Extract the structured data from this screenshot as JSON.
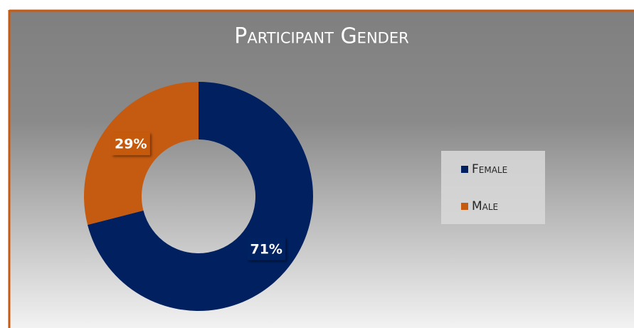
{
  "chart_data": {
    "type": "donut",
    "title": "Participant Gender",
    "categories": [
      "Female",
      "Male"
    ],
    "values": [
      71,
      29
    ],
    "value_labels": [
      "71%",
      "29%"
    ],
    "colors": [
      "#002060",
      "#c55a11"
    ],
    "legend": "right"
  }
}
